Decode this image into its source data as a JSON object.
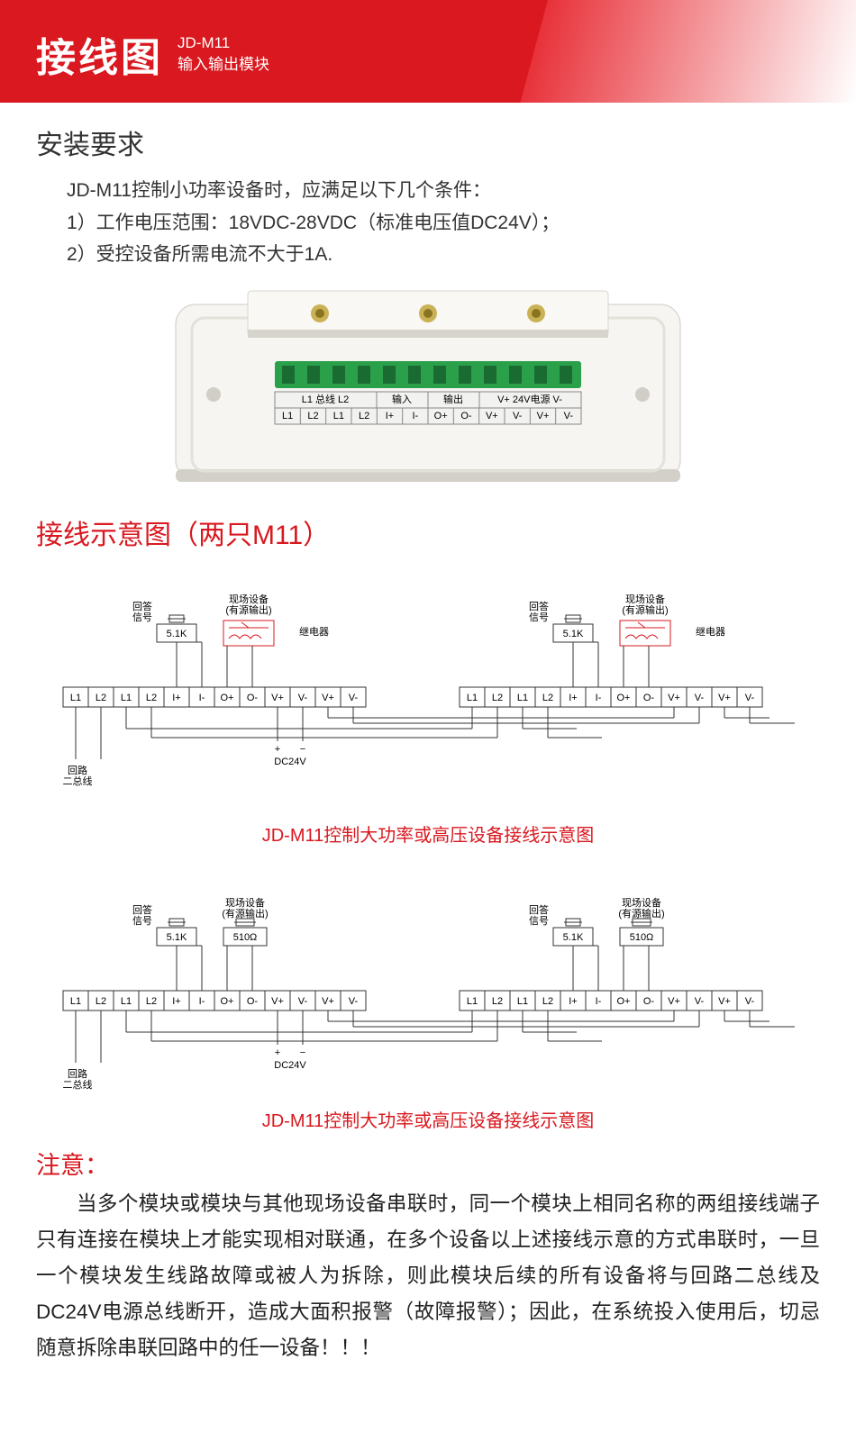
{
  "header": {
    "title": "接线图",
    "model": "JD-M11",
    "subtitle": "输入输出模块"
  },
  "install": {
    "heading": "安装要求",
    "intro": "JD-M11控制小功率设备时，应满足以下几个条件：",
    "line1": "1）工作电压范围：18VDC-28VDC（标准电压值DC24V）；",
    "line2": "2）受控设备所需电流不大于1A."
  },
  "device": {
    "top_row": [
      "L1 总线 L2",
      "输入",
      "输出",
      "V+  24V电源  V-"
    ],
    "bottom_row": [
      "L1",
      "L2",
      "L1",
      "L2",
      "I+",
      "I-",
      "O+",
      "O-",
      "V+",
      "V-",
      "V+",
      "V-"
    ],
    "colors": {
      "body": "#f6f5f1",
      "shadow": "#d8d6d0",
      "screw": "#c9b255",
      "connector": "#2aa04a",
      "label_bg": "#f2f2f0",
      "label_border": "#888"
    }
  },
  "wiring_heading": "接线示意图（两只M11）",
  "terminals": [
    "L1",
    "L2",
    "L1",
    "L2",
    "I+",
    "I-",
    "O+",
    "O-",
    "V+",
    "V-",
    "V+",
    "V-"
  ],
  "labels": {
    "reply": "回答\n信号",
    "field_dev": "现场设备\n(有源输出)",
    "relay": "继电器",
    "r51k": "5.1K",
    "r510": "510Ω",
    "bus": "回路\n二总线",
    "dc24v": "DC24V"
  },
  "diagram1_caption": "JD-M11控制大功率或高压设备接线示意图",
  "diagram2_caption": "JD-M11控制大功率或高压设备接线示意图",
  "note": {
    "title": "注意：",
    "body": "当多个模块或模块与其他现场设备串联时，同一个模块上相同名称的两组接线端子只有连接在模块上才能实现相对联通，在多个设备以上述接线示意的方式串联时，一旦一个模块发生线路故障或被人为拆除，则此模块后续的所有设备将与回路二总线及DC24V电源总线断开，造成大面积报警（故障报警）；因此，在系统投入使用后，切忌随意拆除串联回路中的任一设备！！！"
  },
  "style": {
    "red": "#d9181f",
    "diag_stroke": "#333",
    "diag_red": "#d9181f"
  }
}
